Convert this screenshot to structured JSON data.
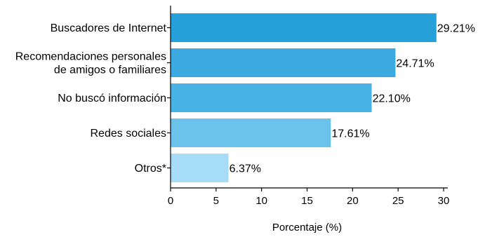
{
  "chart_data": {
    "type": "bar",
    "orientation": "horizontal",
    "title": "",
    "xlabel": "Porcentaje (%)",
    "ylabel": "",
    "xlim": [
      0,
      30
    ],
    "x_ticks": [
      0,
      5,
      10,
      15,
      20,
      25,
      30
    ],
    "grid": false,
    "legend": "none",
    "categories": [
      [
        "Buscadores de Internet"
      ],
      [
        "Recomendaciones personales",
        "de amigos o familiares"
      ],
      [
        "No buscó información"
      ],
      [
        "Redes sociales"
      ],
      [
        "Otros*"
      ]
    ],
    "values": [
      29.21,
      24.71,
      22.1,
      17.61,
      6.37
    ],
    "value_labels": [
      "29.21%",
      "24.71%",
      "22.10%",
      "17.61%",
      "6.37%"
    ],
    "colors": [
      "#26a0d9",
      "#3aaae0",
      "#4ab3e5",
      "#6bc2eb",
      "#a6dcf6"
    ]
  }
}
